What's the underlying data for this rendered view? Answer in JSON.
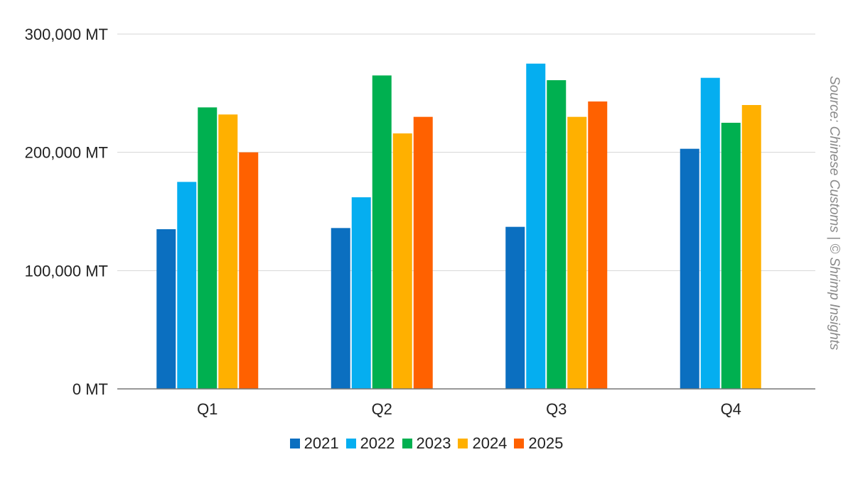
{
  "chart_data": {
    "type": "bar",
    "categories": [
      "Q1",
      "Q2",
      "Q3",
      "Q4"
    ],
    "series": [
      {
        "name": "2021",
        "color": "#0b6fc0",
        "values": [
          135000,
          136000,
          137000,
          203000
        ]
      },
      {
        "name": "2022",
        "color": "#05aef0",
        "values": [
          175000,
          162000,
          275000,
          263000
        ]
      },
      {
        "name": "2023",
        "color": "#00b050",
        "values": [
          238000,
          265000,
          261000,
          225000
        ]
      },
      {
        "name": "2024",
        "color": "#ffb000",
        "values": [
          232000,
          216000,
          230000,
          240000
        ]
      },
      {
        "name": "2025",
        "color": "#ff6100",
        "values": [
          200000,
          230000,
          243000,
          null
        ]
      }
    ],
    "y_ticks": [
      "0 MT",
      "100,000 MT",
      "200,000 MT",
      "300,000 MT"
    ],
    "y_tick_values": [
      0,
      100000,
      200000,
      300000
    ],
    "ylim": [
      0,
      300000
    ],
    "grid": true,
    "legend_position": "bottom",
    "annotation": "Source: Chinese Customs | © Shrimp Insights",
    "title": "",
    "xlabel": "",
    "ylabel": ""
  }
}
